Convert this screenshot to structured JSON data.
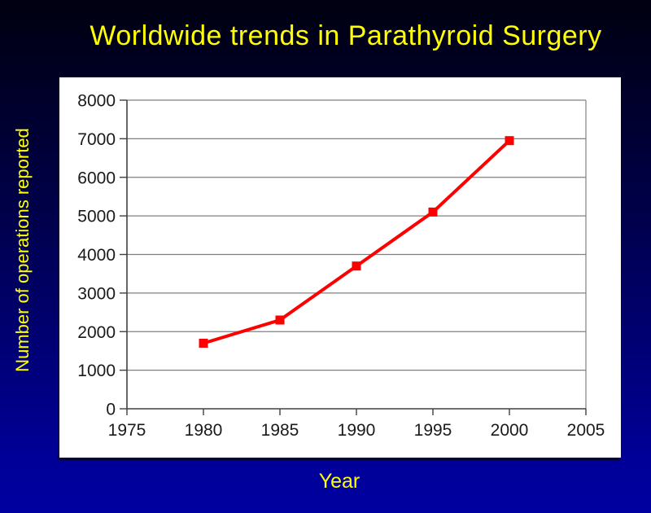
{
  "slide": {
    "background_top_color": "#000010",
    "background_bottom_color": "#0000A0",
    "accent_text_color": "#FFFF00",
    "panel_color": "#FFFFFF"
  },
  "chart_data": {
    "type": "line",
    "title": "Worldwide trends in Parathyroid Surgery",
    "xlabel": "Year",
    "ylabel": "Number of operations reported",
    "x": [
      1980,
      1985,
      1990,
      1995,
      2000
    ],
    "series": [
      {
        "name": "Number of operations reported",
        "values": [
          1700,
          2300,
          3700,
          5100,
          6950
        ]
      }
    ],
    "xlim": [
      1975,
      2005
    ],
    "ylim": [
      0,
      8000
    ],
    "xticks": [
      1975,
      1980,
      1985,
      1990,
      1995,
      2000,
      2005
    ],
    "yticks": [
      0,
      1000,
      2000,
      3000,
      4000,
      5000,
      6000,
      7000,
      8000
    ],
    "grid": "horizontal",
    "legend": "none",
    "line_color": "#FF0000",
    "marker": "square",
    "marker_color": "#FF0000",
    "grid_color": "#808080",
    "axis_color": "#404040",
    "tick_label_color": "#1A1A1A"
  }
}
